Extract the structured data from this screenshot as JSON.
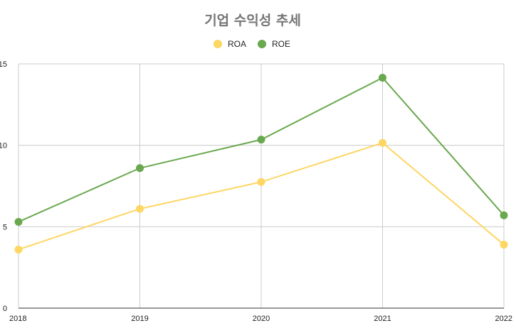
{
  "chart_data": {
    "type": "line",
    "title": "기업 수익성 추세",
    "xlabel": "",
    "ylabel": "",
    "categories": [
      "2018",
      "2019",
      "2020",
      "2021",
      "2022"
    ],
    "ylim": [
      0,
      15
    ],
    "yticks": [
      "0",
      "5",
      "10",
      "15"
    ],
    "grid": true,
    "legend_position": "top",
    "series": [
      {
        "name": "ROA",
        "color": "#fdd663",
        "values": [
          3.6,
          6.1,
          7.75,
          10.15,
          3.9
        ]
      },
      {
        "name": "ROE",
        "color": "#6aa84f",
        "values": [
          5.3,
          8.6,
          10.35,
          14.15,
          5.7
        ]
      }
    ]
  }
}
